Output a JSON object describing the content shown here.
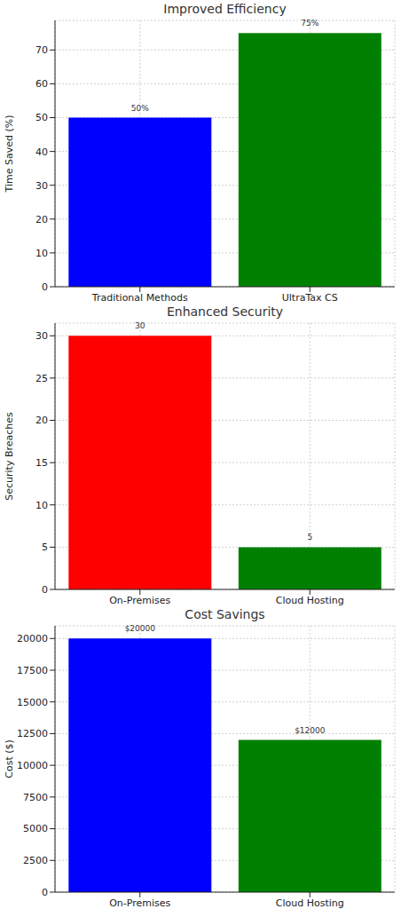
{
  "chart_data": [
    {
      "type": "bar",
      "title": "Improved Efficiency",
      "y_label": "Time Saved (%)",
      "categories": [
        "Traditional Methods",
        "UltraTax CS"
      ],
      "values": [
        50,
        75
      ],
      "value_labels": [
        "50%",
        "75%"
      ],
      "data_labels": true,
      "colors": [
        "#0000ff",
        "#008000"
      ],
      "ylim": [
        0,
        78.75
      ],
      "yticks": [
        0,
        10,
        20,
        30,
        40,
        50,
        60,
        70
      ],
      "grid": true
    },
    {
      "type": "bar",
      "title": "Enhanced Security",
      "y_label": "Security Breaches",
      "categories": [
        "On-Premises",
        "Cloud Hosting"
      ],
      "values": [
        30,
        5
      ],
      "data_labels": true,
      "colors": [
        "#ff0000",
        "#008000"
      ],
      "ylim": [
        0,
        31.5
      ],
      "yticks": [
        0,
        5,
        10,
        15,
        20,
        25,
        30
      ],
      "grid": true
    },
    {
      "type": "bar",
      "title": "Cost Savings",
      "y_label": "Cost ($)",
      "categories": [
        "On-Premises",
        "Cloud Hosting"
      ],
      "values": [
        20000,
        12000
      ],
      "value_labels": [
        "$20000",
        "$12000"
      ],
      "data_labels": true,
      "colors": [
        "#0000ff",
        "#008000"
      ],
      "ylim": [
        0,
        21000
      ],
      "yticks": [
        0,
        2500,
        5000,
        7500,
        10000,
        12500,
        15000,
        17500,
        20000
      ],
      "grid": true
    }
  ]
}
